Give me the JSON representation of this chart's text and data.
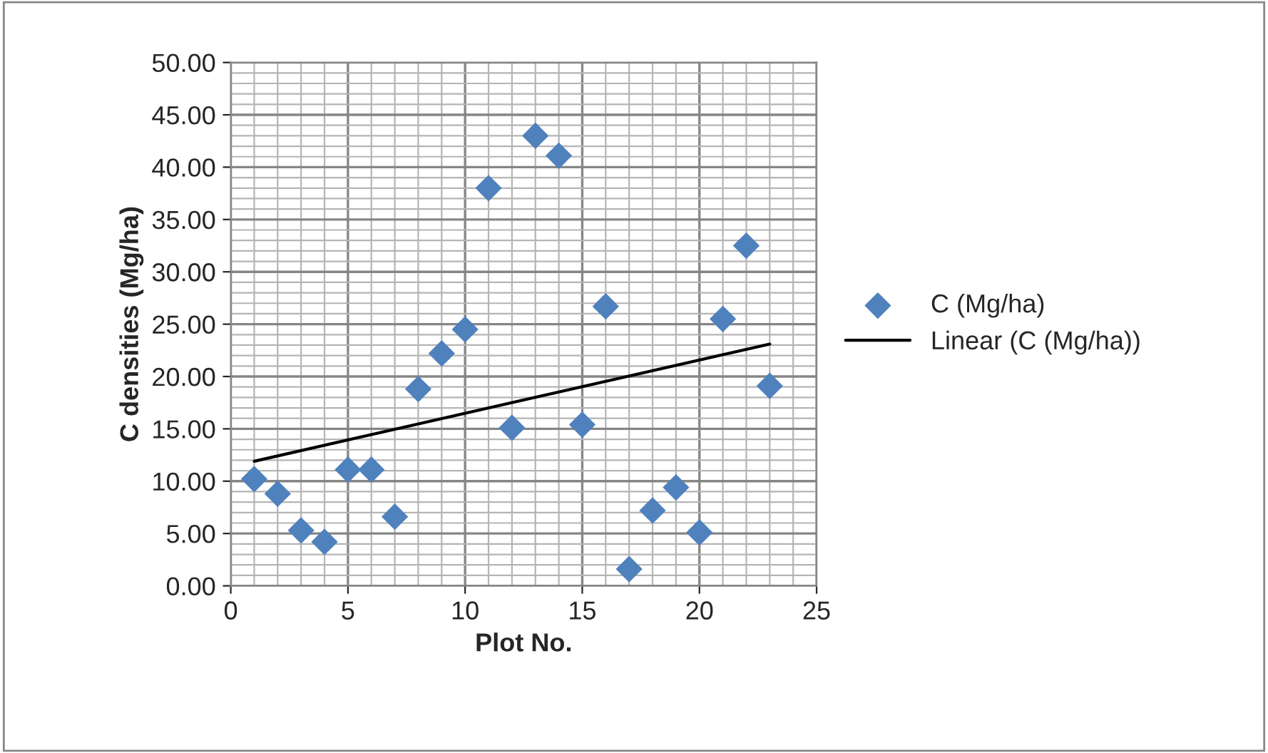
{
  "chart_data": {
    "type": "scatter",
    "xlabel": "Plot No.",
    "ylabel": "C densities (Mg/ha)",
    "x": [
      1,
      2,
      3,
      4,
      5,
      6,
      7,
      8,
      9,
      10,
      11,
      12,
      13,
      14,
      15,
      16,
      17,
      18,
      19,
      20,
      21,
      22,
      23
    ],
    "series": [
      {
        "name": "C (Mg/ha)",
        "color": "#4f81bd",
        "marker": "diamond",
        "values": [
          10.2,
          8.8,
          5.3,
          4.2,
          11.1,
          11.1,
          6.6,
          18.8,
          22.2,
          24.5,
          38.0,
          15.1,
          43.0,
          41.1,
          15.4,
          26.7,
          1.6,
          7.2,
          9.4,
          5.1,
          25.5,
          32.5,
          19.1
        ]
      },
      {
        "name": "Linear (C (Mg/ha))",
        "type": "line",
        "color": "#000000",
        "x": [
          1,
          23
        ],
        "values": [
          11.9,
          23.1
        ]
      }
    ],
    "xlim": [
      0,
      25
    ],
    "xticks": [
      0,
      5,
      10,
      15,
      20,
      25
    ],
    "ylim": [
      0,
      50
    ],
    "yticks": [
      {
        "value": 0,
        "label": "0.00"
      },
      {
        "value": 5,
        "label": "5.00"
      },
      {
        "value": 10,
        "label": "10.00"
      },
      {
        "value": 15,
        "label": "15.00"
      },
      {
        "value": 20,
        "label": "20.00"
      },
      {
        "value": 25,
        "label": "25.00"
      },
      {
        "value": 30,
        "label": "30.00"
      },
      {
        "value": 35,
        "label": "35.00"
      },
      {
        "value": 40,
        "label": "40.00"
      },
      {
        "value": 45,
        "label": "45.00"
      },
      {
        "value": 50,
        "label": "50.00"
      }
    ],
    "grid": true,
    "legend": "right"
  }
}
